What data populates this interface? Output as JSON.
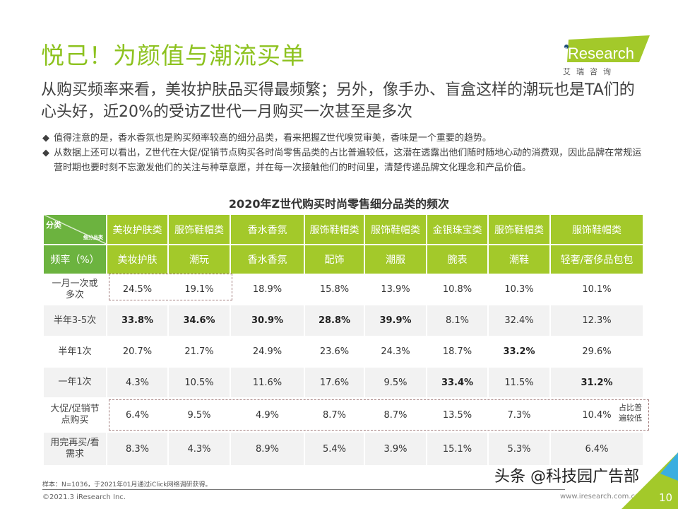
{
  "title": "悦己！为颜值与潮流买单",
  "logo": {
    "brand": "iResearch",
    "cn": "艾 瑞 咨 询",
    "color": "#a3c92a"
  },
  "subtitle": "从购买频率来看，美妆护肤品买得最频繁；另外，像手办、盲盒这样的潮玩也是TA们的心头好，近20%的受访Z世代一月购买一次甚至是多次",
  "bullets": [
    "值得注意的是，香水香氛也是购买频率较高的细分品类，看来把握Z世代嗅觉审美，香味是一个重要的趋势。",
    "从数据上还可以看出，Z世代在大促/促销节点购买各时尚零售品类的占比普遍较低，这潜在透露出他们随时随地心动的消费观，因此品牌在常规运营时期也要时刻不忘激发他们的关注与种草意愿，并在每一次接触他们的时间里，清楚传递品牌文化理念和产品价值。"
  ],
  "bullet_glyph": "◆",
  "table": {
    "title": "2020年Z世代购买时尚零售细分品类的频次",
    "corner_top": "分类",
    "corner_sub": "细分品类",
    "corner_row2": "频率（%）",
    "categories": [
      "美妆护肤类",
      "服饰鞋帽类",
      "香水香氛",
      "服饰鞋帽类",
      "服饰鞋帽类",
      "金银珠宝类",
      "服饰鞋帽类",
      "服饰鞋帽类"
    ],
    "subcategories": [
      "美妆护肤",
      "潮玩",
      "香水香氛",
      "配饰",
      "潮服",
      "腕表",
      "潮鞋",
      "轻奢/奢侈品包包"
    ],
    "rows": [
      {
        "label": "一月一次或多次",
        "values": [
          "24.5%",
          "19.1%",
          "18.9%",
          "15.8%",
          "13.9%",
          "10.8%",
          "10.3%",
          "10.1%"
        ],
        "bold": []
      },
      {
        "label": "半年3-5次",
        "values": [
          "33.8%",
          "34.6%",
          "30.9%",
          "28.8%",
          "39.9%",
          "8.1%",
          "32.4%",
          "12.3%"
        ],
        "bold": [
          0,
          1,
          2,
          3,
          4
        ]
      },
      {
        "label": "半年1次",
        "values": [
          "20.7%",
          "21.7%",
          "24.9%",
          "23.6%",
          "24.3%",
          "18.7%",
          "33.2%",
          "29.6%"
        ],
        "bold": [
          6
        ]
      },
      {
        "label": "一年1次",
        "values": [
          "4.3%",
          "10.5%",
          "11.6%",
          "17.6%",
          "9.5%",
          "33.4%",
          "11.5%",
          "31.2%"
        ],
        "bold": [
          5,
          7
        ]
      },
      {
        "label": "大促/促销节点购买",
        "values": [
          "6.4%",
          "9.5%",
          "4.9%",
          "8.7%",
          "8.7%",
          "13.5%",
          "7.3%",
          "10.4%"
        ],
        "bold": []
      },
      {
        "label": "用完再买/看需求",
        "values": [
          "8.3%",
          "4.3%",
          "8.9%",
          "5.4%",
          "3.9%",
          "15.1%",
          "5.3%",
          "6.4%"
        ],
        "bold": []
      }
    ],
    "note": "占比普遍较低"
  },
  "footnote": "样本：N=1036，于2021年01月通过iClick网络调研获得。",
  "copyright": "©2021.3 iResearch Inc.",
  "site": "www.iresearch.com.cn",
  "watermark": "头条 @科技园广告部",
  "page_number": "10"
}
